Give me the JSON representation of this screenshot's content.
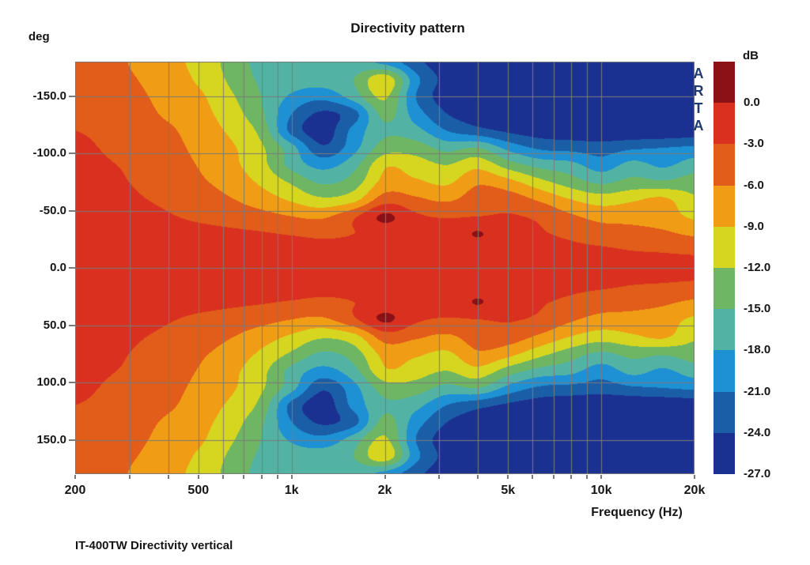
{
  "title": "Directivity pattern",
  "watermark": "ARTA",
  "caption": "IT-400TW Directivity vertical",
  "axes": {
    "y_unit": "deg",
    "colorbar_unit": "dB",
    "x_label": "Frequency (Hz)",
    "y_ticks": [
      {
        "label": "-150.0",
        "deg": -150
      },
      {
        "label": "-100.0",
        "deg": -100
      },
      {
        "label": "-50.0",
        "deg": -50
      },
      {
        "label": "0.0",
        "deg": 0
      },
      {
        "label": "50.0",
        "deg": 50
      },
      {
        "label": "100.0",
        "deg": 100
      },
      {
        "label": "150.0",
        "deg": 150
      }
    ],
    "x_ticks": [
      {
        "label": "200",
        "hz": 200
      },
      {
        "label": "500",
        "hz": 500
      },
      {
        "label": "1k",
        "hz": 1000
      },
      {
        "label": "2k",
        "hz": 2000
      },
      {
        "label": "5k",
        "hz": 5000
      },
      {
        "label": "10k",
        "hz": 10000
      },
      {
        "label": "20k",
        "hz": 20000
      }
    ],
    "colorbar_ticks": [
      "0.0",
      "-3.0",
      "-6.0",
      "-9.0",
      "-12.0",
      "-15.0",
      "-18.0",
      "-21.0",
      "-24.0",
      "-27.0"
    ]
  },
  "chart_data": {
    "type": "heatmap",
    "title": "Directivity pattern",
    "xlabel": "Frequency (Hz)",
    "ylabel": "deg",
    "x_scale": "log",
    "x_range_hz": [
      200,
      20000
    ],
    "y_range_deg": [
      -180,
      180
    ],
    "grid": true,
    "legend_position": "right-colorbar",
    "colorbar": {
      "label": "dB",
      "level_boundaries_db": [
        0,
        -3,
        -6,
        -9,
        -12,
        -15,
        -18,
        -21,
        -24,
        -27
      ],
      "colors": [
        "#8B1116",
        "#D93020",
        "#E25C1A",
        "#F09D15",
        "#D6D621",
        "#6EB664",
        "#52B3A5",
        "#1E90D4",
        "#1B5EA8",
        "#1B3191"
      ]
    },
    "gridline_frequencies_hz": [
      300,
      400,
      500,
      600,
      700,
      800,
      900,
      1000,
      2000,
      3000,
      4000,
      5000,
      6000,
      7000,
      8000,
      9000,
      10000,
      20000
    ],
    "gridline_angles_deg": [
      -150,
      -100,
      -50,
      0,
      50,
      100,
      150
    ],
    "x_frequencies_hz": [
      200,
      250,
      315,
      400,
      500,
      630,
      800,
      1000,
      1250,
      1600,
      2000,
      2500,
      3150,
      4000,
      5000,
      6300,
      8000,
      10000,
      12500,
      16000,
      20000
    ],
    "y_angles_deg": [
      -180,
      -165,
      -150,
      -135,
      -120,
      -105,
      -90,
      -75,
      -60,
      -45,
      -30,
      -15,
      0,
      15,
      30,
      45,
      60,
      75,
      90,
      105,
      120,
      135,
      150,
      165,
      180
    ],
    "values_db": [
      [
        -4.5,
        -5.0,
        -6.5,
        -8.0,
        -10.0,
        -13.0,
        -16.0,
        -16.5,
        -16.5,
        -17.0,
        -19.0,
        -23.0,
        -26.0,
        -26.5,
        -27.0,
        -27.5,
        -28.0,
        -28.0,
        -28.0,
        -28.0,
        -28.0
      ],
      [
        -4.2,
        -4.8,
        -6.0,
        -7.5,
        -9.5,
        -12.5,
        -15.5,
        -16.5,
        -16.5,
        -15.0,
        -10.0,
        -20.0,
        -25.0,
        -26.0,
        -26.5,
        -27.0,
        -28.0,
        -28.0,
        -28.0,
        -28.0,
        -28.0
      ],
      [
        -3.8,
        -4.5,
        -5.5,
        -7.0,
        -8.5,
        -11.5,
        -15.0,
        -18.5,
        -20.0,
        -16.5,
        -11.5,
        -21.0,
        -25.5,
        -26.0,
        -26.5,
        -27.0,
        -28.0,
        -28.0,
        -28.0,
        -28.0,
        -28.0
      ],
      [
        -3.4,
        -4.0,
        -5.0,
        -6.5,
        -8.0,
        -10.5,
        -14.5,
        -21.0,
        -24.5,
        -22.0,
        -14.0,
        -19.5,
        -24.0,
        -25.5,
        -26.0,
        -27.0,
        -27.5,
        -28.0,
        -28.0,
        -28.0,
        -28.0
      ],
      [
        -3.0,
        -3.5,
        -4.5,
        -5.5,
        -7.5,
        -9.5,
        -13.0,
        -22.0,
        -25.5,
        -20.0,
        -15.5,
        -17.0,
        -21.0,
        -23.0,
        -24.5,
        -25.5,
        -26.0,
        -26.5,
        -26.5,
        -26.5,
        -26.0
      ],
      [
        -2.6,
        -3.2,
        -4.2,
        -5.0,
        -6.8,
        -8.5,
        -11.5,
        -17.0,
        -23.5,
        -19.0,
        -13.5,
        -13.5,
        -16.0,
        -15.0,
        -19.0,
        -21.5,
        -22.0,
        -22.5,
        -21.5,
        -21.0,
        -20.5
      ],
      [
        -2.3,
        -2.8,
        -3.5,
        -4.5,
        -6.2,
        -8.2,
        -11.0,
        -16.0,
        -19.0,
        -16.0,
        -9.5,
        -10.5,
        -12.0,
        -10.0,
        -13.5,
        -16.0,
        -17.0,
        -19.5,
        -17.0,
        -18.5,
        -16.5
      ],
      [
        -2.0,
        -2.5,
        -3.2,
        -4.0,
        -5.5,
        -7.2,
        -9.5,
        -12.5,
        -15.5,
        -13.5,
        -8.0,
        -8.5,
        -9.5,
        -6.5,
        -8.0,
        -11.0,
        -13.5,
        -15.5,
        -14.0,
        -14.5,
        -13.5
      ],
      [
        -1.8,
        -2.2,
        -2.8,
        -3.5,
        -4.5,
        -5.8,
        -7.5,
        -9.5,
        -11.5,
        -10.0,
        -4.5,
        -5.5,
        -6.5,
        -4.5,
        -4.5,
        -6.5,
        -9.0,
        -10.5,
        -9.5,
        -8.5,
        -11.5
      ],
      [
        -1.6,
        -1.8,
        -2.2,
        -2.8,
        -3.5,
        -4.2,
        -5.0,
        -6.0,
        -6.5,
        -3.5,
        0.5,
        -2.5,
        -3.2,
        -3.0,
        -2.8,
        -3.5,
        -5.5,
        -7.0,
        -7.0,
        -7.5,
        -9.5
      ],
      [
        -1.5,
        -1.6,
        -1.8,
        -2.0,
        -2.2,
        -2.5,
        -2.8,
        -3.2,
        -3.5,
        -3.0,
        -2.0,
        -2.2,
        -2.5,
        0.2,
        -2.5,
        -2.8,
        -3.5,
        -4.5,
        -5.0,
        -5.5,
        -6.5
      ],
      [
        -1.4,
        -1.5,
        -1.6,
        -1.8,
        -1.9,
        -2.0,
        -2.1,
        -2.2,
        -2.4,
        -2.2,
        -1.6,
        -1.8,
        -2.0,
        -2.2,
        -2.3,
        -2.4,
        -2.5,
        -2.6,
        -3.0,
        -3.2,
        -3.5
      ],
      [
        -1.3,
        -1.4,
        -1.5,
        -1.6,
        -1.7,
        -1.8,
        -1.9,
        -2.0,
        -2.1,
        -2.0,
        -1.4,
        -1.5,
        -1.6,
        -1.7,
        -1.8,
        -1.9,
        -2.0,
        -2.0,
        -2.1,
        -2.1,
        -2.2
      ],
      [
        -1.4,
        -1.5,
        -1.6,
        -1.8,
        -1.9,
        -2.0,
        -2.1,
        -2.2,
        -2.4,
        -2.2,
        -1.6,
        -1.8,
        -2.0,
        -2.2,
        -2.3,
        -2.4,
        -2.5,
        -2.6,
        -3.0,
        -3.2,
        -3.5
      ],
      [
        -1.5,
        -1.6,
        -1.8,
        -2.0,
        -2.2,
        -2.5,
        -2.8,
        -3.2,
        -3.5,
        -3.0,
        -2.0,
        -2.2,
        -2.5,
        0.2,
        -2.5,
        -2.8,
        -3.5,
        -4.5,
        -5.0,
        -5.5,
        -6.5
      ],
      [
        -1.6,
        -1.8,
        -2.2,
        -2.8,
        -3.5,
        -4.2,
        -5.0,
        -6.0,
        -6.5,
        -3.5,
        0.5,
        -2.5,
        -3.2,
        -3.0,
        -2.8,
        -3.5,
        -5.5,
        -7.0,
        -7.0,
        -7.5,
        -9.5
      ],
      [
        -1.8,
        -2.2,
        -2.8,
        -3.5,
        -4.5,
        -5.8,
        -7.5,
        -9.5,
        -11.5,
        -10.0,
        -4.5,
        -5.5,
        -6.5,
        -4.5,
        -4.5,
        -6.5,
        -9.0,
        -10.5,
        -9.5,
        -8.5,
        -11.5
      ],
      [
        -2.0,
        -2.5,
        -3.2,
        -4.0,
        -5.5,
        -7.2,
        -9.5,
        -12.5,
        -15.5,
        -13.5,
        -8.0,
        -8.5,
        -9.5,
        -6.5,
        -8.0,
        -11.0,
        -13.5,
        -15.5,
        -14.0,
        -14.5,
        -13.5
      ],
      [
        -2.3,
        -2.8,
        -3.5,
        -4.5,
        -6.2,
        -8.2,
        -11.0,
        -16.0,
        -19.0,
        -16.0,
        -9.5,
        -10.5,
        -12.0,
        -10.0,
        -13.5,
        -16.0,
        -17.0,
        -19.5,
        -17.0,
        -18.5,
        -16.5
      ],
      [
        -2.6,
        -3.2,
        -4.2,
        -5.0,
        -6.8,
        -8.5,
        -11.5,
        -17.0,
        -23.5,
        -19.0,
        -13.5,
        -13.5,
        -16.0,
        -15.0,
        -19.0,
        -21.5,
        -22.0,
        -22.5,
        -21.5,
        -21.0,
        -20.5
      ],
      [
        -3.0,
        -3.5,
        -4.5,
        -5.5,
        -7.5,
        -9.5,
        -13.0,
        -22.0,
        -25.5,
        -20.0,
        -15.5,
        -17.0,
        -21.0,
        -23.0,
        -24.5,
        -25.5,
        -26.0,
        -26.5,
        -26.5,
        -26.5,
        -26.0
      ],
      [
        -3.4,
        -4.0,
        -5.0,
        -6.5,
        -8.0,
        -10.5,
        -14.5,
        -21.0,
        -24.5,
        -22.0,
        -14.0,
        -19.5,
        -24.0,
        -25.5,
        -26.0,
        -27.0,
        -27.5,
        -28.0,
        -28.0,
        -28.0,
        -28.0
      ],
      [
        -3.8,
        -4.5,
        -5.5,
        -7.0,
        -8.5,
        -11.5,
        -15.0,
        -18.5,
        -20.0,
        -16.5,
        -11.5,
        -21.0,
        -25.5,
        -26.0,
        -26.5,
        -27.0,
        -28.0,
        -28.0,
        -28.0,
        -28.0,
        -28.0
      ],
      [
        -4.2,
        -4.8,
        -6.0,
        -7.5,
        -9.5,
        -12.5,
        -15.5,
        -16.5,
        -16.5,
        -15.0,
        -10.0,
        -20.0,
        -25.0,
        -26.0,
        -26.5,
        -27.0,
        -28.0,
        -28.0,
        -28.0,
        -28.0,
        -28.0
      ],
      [
        -4.5,
        -5.0,
        -6.5,
        -8.0,
        -10.0,
        -13.0,
        -16.0,
        -16.5,
        -16.5,
        -17.0,
        -19.0,
        -23.0,
        -26.0,
        -26.5,
        -27.0,
        -27.5,
        -28.0,
        -28.0,
        -28.0,
        -28.0,
        -28.0
      ]
    ]
  }
}
